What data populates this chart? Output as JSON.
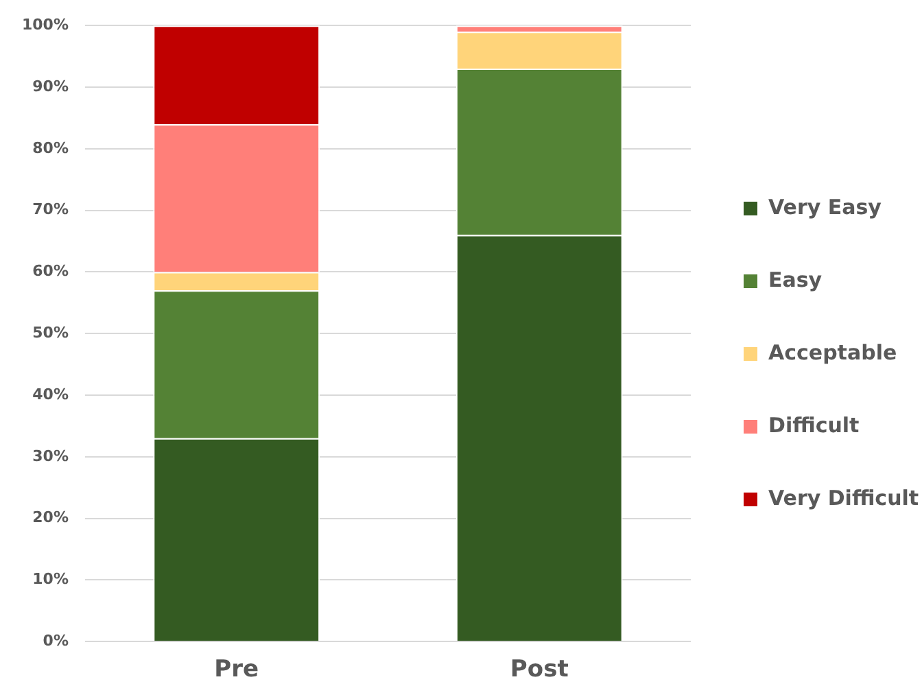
{
  "chart_data": {
    "type": "bar",
    "stacked": true,
    "categories": [
      "Pre",
      "Post"
    ],
    "series": [
      {
        "name": "Very Easy",
        "color": "#345b22",
        "values": [
          33,
          66
        ]
      },
      {
        "name": "Easy",
        "color": "#548235",
        "values": [
          24,
          27
        ]
      },
      {
        "name": "Acceptable",
        "color": "#ffd47a",
        "values": [
          3,
          6
        ]
      },
      {
        "name": "Difficult",
        "color": "#ff7f79",
        "values": [
          24,
          1
        ]
      },
      {
        "name": "Very Difficult",
        "color": "#c00000",
        "values": [
          16,
          0
        ]
      }
    ],
    "ylim": [
      0,
      100
    ],
    "yticks": [
      {
        "value": 0,
        "label": "0%"
      },
      {
        "value": 10,
        "label": "10%"
      },
      {
        "value": 20,
        "label": "20%"
      },
      {
        "value": 30,
        "label": "30%"
      },
      {
        "value": 40,
        "label": "40%"
      },
      {
        "value": 50,
        "label": "50%"
      },
      {
        "value": 60,
        "label": "60%"
      },
      {
        "value": 70,
        "label": "70%"
      },
      {
        "value": 80,
        "label": "80%"
      },
      {
        "value": 90,
        "label": "90%"
      },
      {
        "value": 100,
        "label": "100%"
      }
    ],
    "grid": "y",
    "legend": "right"
  }
}
